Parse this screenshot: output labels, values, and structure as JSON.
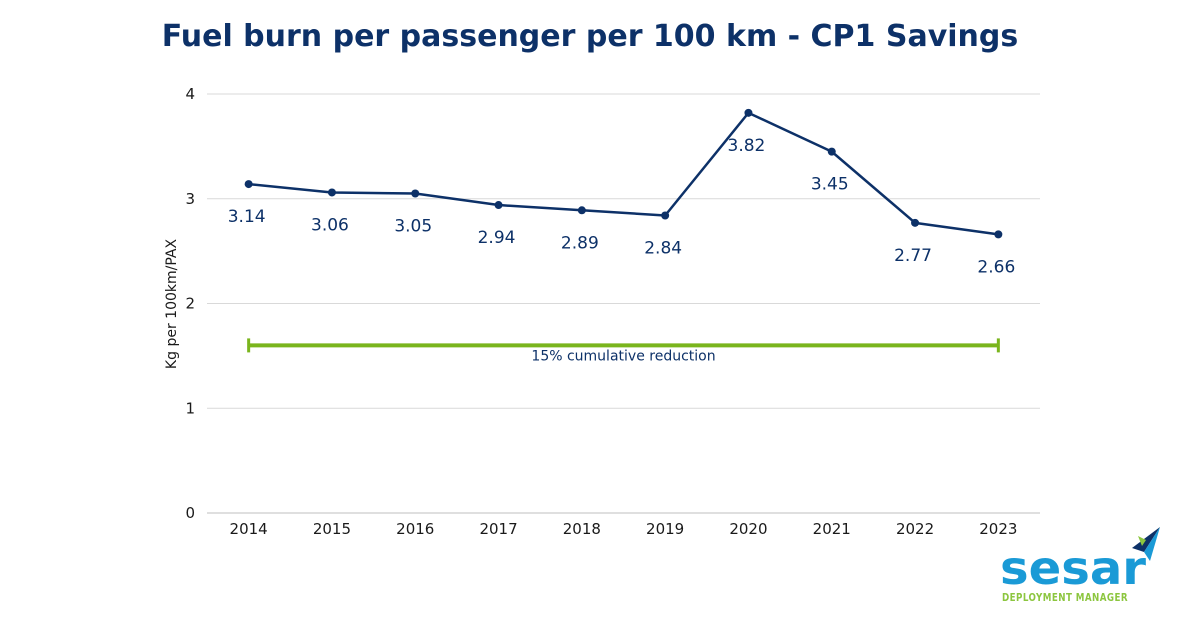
{
  "colors": {
    "navy": "#0d3168",
    "green": "#7ab51d",
    "grid": "#d9d9d9",
    "axis": "#bfbfbf",
    "logo_blue": "#1a9ad6",
    "logo_green": "#8cc63f"
  },
  "chart_data": {
    "type": "line",
    "title": "Fuel burn per passenger per 100 km - CP1 Savings",
    "xlabel": "",
    "ylabel": "Kg per 100km/PAX",
    "ylim": [
      0,
      4
    ],
    "yticks": [
      "0",
      "1",
      "2",
      "3",
      "4"
    ],
    "grid": true,
    "categories": [
      "2014",
      "2015",
      "2016",
      "2017",
      "2018",
      "2019",
      "2020",
      "2021",
      "2022",
      "2023"
    ],
    "series": [
      {
        "name": "Fuel burn",
        "values": [
          3.14,
          3.06,
          3.05,
          2.94,
          2.89,
          2.84,
          3.82,
          3.45,
          2.77,
          2.66
        ],
        "labels": [
          "3.14",
          "3.06",
          "3.05",
          "2.94",
          "2.89",
          "2.84",
          "3.82",
          "3.45",
          "2.77",
          "2.66"
        ]
      }
    ],
    "annotation": {
      "text": "15% cumulative reduction",
      "from": "2014",
      "to": "2023",
      "value": 1.6
    }
  },
  "logo": {
    "name": "sesar",
    "tagline": "DEPLOYMENT MANAGER"
  }
}
